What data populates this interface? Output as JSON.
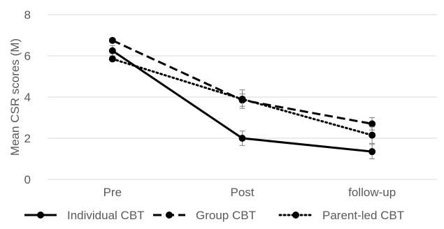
{
  "chart_data": {
    "type": "line",
    "categories": [
      "Pre",
      "Post",
      "follow-up"
    ],
    "ylabel": "Mean CSR scores (M)",
    "xlabel": "",
    "ylim": [
      0,
      8
    ],
    "yticks": [
      0,
      2,
      4,
      6,
      8
    ],
    "grid": true,
    "legend_position": "bottom",
    "series": [
      {
        "name": "Individual CBT",
        "values": [
          6.25,
          2.0,
          1.35
        ],
        "errors": [
          0.25,
          0.35,
          0.35
        ],
        "dash": "solid"
      },
      {
        "name": "Group CBT",
        "values": [
          6.75,
          3.85,
          2.7
        ],
        "errors": [
          0.1,
          0.3,
          0.3
        ],
        "dash": "dashed"
      },
      {
        "name": "Parent-led CBT",
        "values": [
          5.85,
          3.9,
          2.15
        ],
        "errors": [
          0.1,
          0.45,
          0.4
        ],
        "dash": "dotted"
      }
    ],
    "colors": {
      "line": "#000000",
      "grid": "#d9d9d9",
      "text": "#595959",
      "error": "#7f7f7f"
    }
  }
}
